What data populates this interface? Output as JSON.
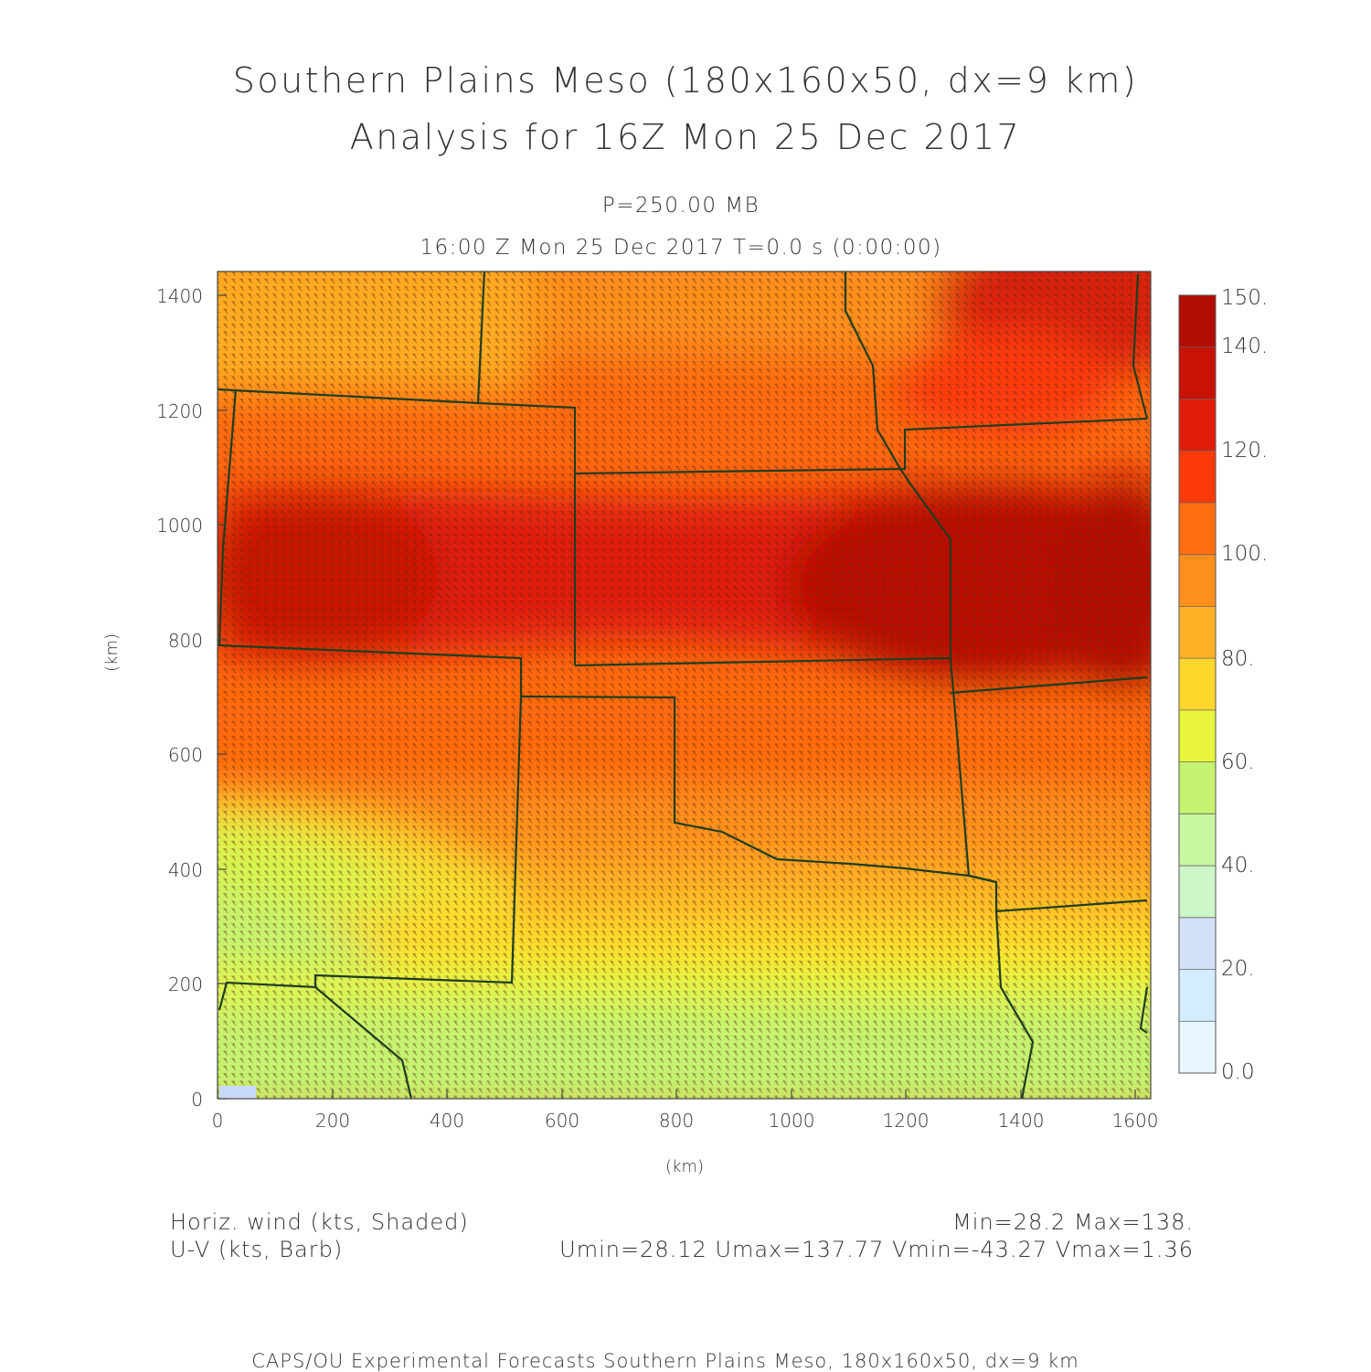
{
  "title_line1": "Southern Plains Meso (180x160x50, dx=9 km)",
  "title_line2": "Analysis for 16Z Mon 25 Dec 2017",
  "pressure_level": "P=250.00 MB",
  "valid_time": "16:00 Z Mon 25 Dec 2017    T=0.0 s (0:00:00)",
  "x_axis_label": "(km)",
  "y_axis_label": "(km)",
  "x_ticks": [
    "0",
    "200",
    "400",
    "600",
    "800",
    "1000",
    "1200",
    "1400",
    "1600"
  ],
  "y_ticks": [
    "0",
    "200",
    "400",
    "600",
    "800",
    "1000",
    "1200",
    "1400"
  ],
  "colorbar": {
    "labels": [
      "0.0",
      "20.",
      "40.",
      "60.",
      "80.",
      "100.",
      "120.",
      "140.",
      "150."
    ],
    "colors": [
      "#e8f6ff",
      "#d4ecff",
      "#d2e0f8",
      "#ccf5c8",
      "#c8f7a2",
      "#c5f270",
      "#e8f53a",
      "#ffd72c",
      "#ffb227",
      "#ff8f1c",
      "#ff6f12",
      "#ff3a0a",
      "#e01e0a",
      "#c81205",
      "#b30c00"
    ]
  },
  "legend": {
    "field_label": "Horiz. wind (kts, Shaded)",
    "barb_label": "U-V (kts, Barb)",
    "minmax": "Min=28.2 Max=138.",
    "uv_stats": "Umin=28.12 Umax=137.77 Vmin=-43.27 Vmax=1.36"
  },
  "footer": "CAPS/OU Experimental Forecasts  Southern Plains Meso, 180x160x50, dx=9 km",
  "field_stats": {
    "min": 28.2,
    "max": 138.0,
    "umin": 28.12,
    "umax": 137.77,
    "vmin": -43.27,
    "vmax": 1.36
  },
  "boundary_color": "#1f3d1f"
}
